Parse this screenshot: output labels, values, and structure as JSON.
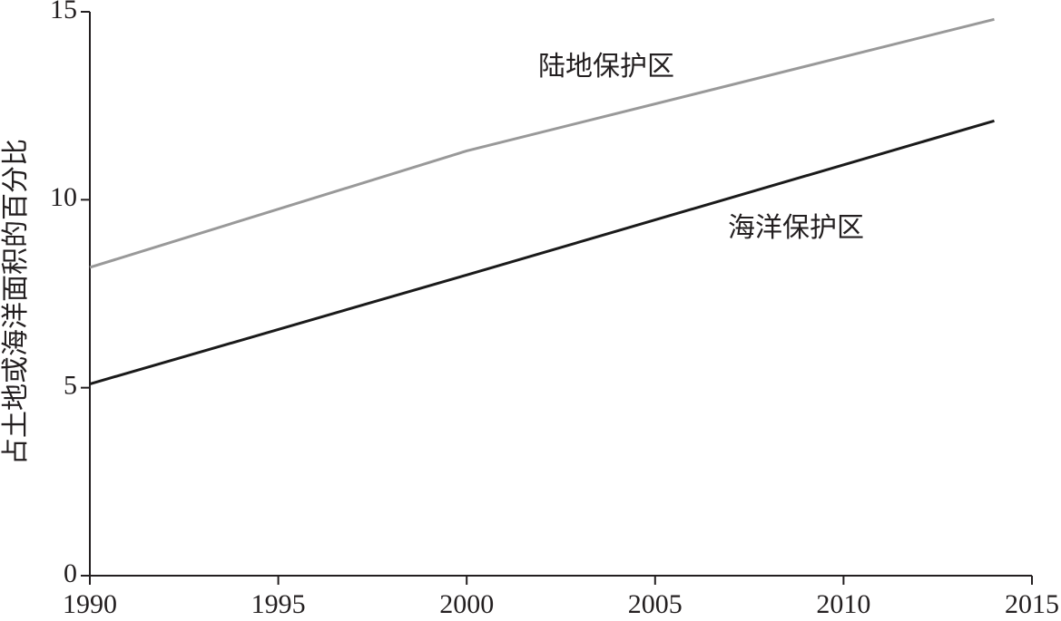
{
  "chart_data": {
    "type": "line",
    "y_label": "占土地或海洋面积的百分比",
    "x": [
      1990,
      2000,
      2014
    ],
    "series": [
      {
        "name": "陆地保护区",
        "color": "#999999",
        "values": [
          8.2,
          11.3,
          14.8
        ]
      },
      {
        "name": "海洋保护区",
        "color": "#1a1a1a",
        "values": [
          5.1,
          8.0,
          12.1
        ]
      }
    ],
    "xlim": [
      1990,
      2015
    ],
    "xticks": [
      1990,
      1995,
      2000,
      2005,
      2010,
      2015
    ],
    "ylim": [
      0,
      15
    ],
    "yticks": [
      0,
      5,
      10,
      15
    ],
    "grid": false
  }
}
